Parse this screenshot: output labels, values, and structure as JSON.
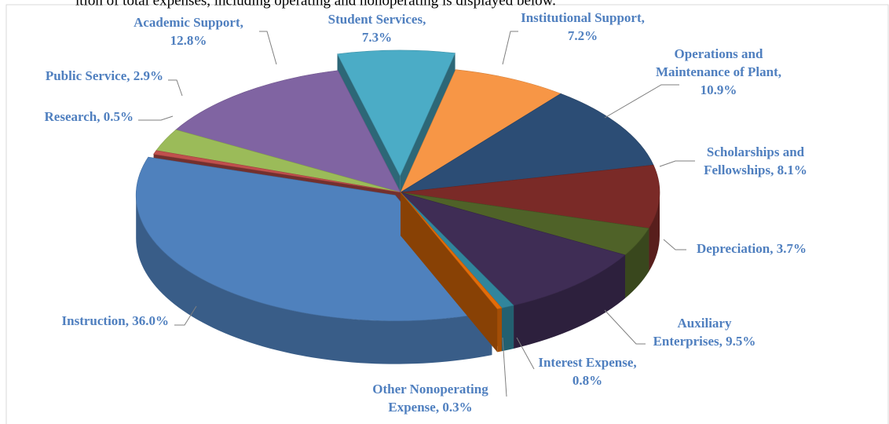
{
  "caption": "ition of total expenses, including operating and nonoperating is displayed below.",
  "chart_data": {
    "type": "pie3d",
    "values": [
      7.3,
      7.2,
      10.9,
      8.1,
      3.7,
      9.5,
      0.8,
      0.3,
      36.0,
      0.5,
      2.9,
      12.8
    ],
    "labels": [
      [
        "Student Services,",
        "7.3%"
      ],
      [
        "Institutional Support,",
        "7.2%"
      ],
      [
        "Operations and",
        "Maintenance of Plant,",
        "10.9%"
      ],
      [
        "Scholarships and",
        "Fellowships, 8.1%"
      ],
      [
        "Depreciation, 3.7%"
      ],
      [
        "Auxiliary",
        "Enterprises, 9.5%"
      ],
      [
        "Interest Expense,",
        "0.8%"
      ],
      [
        "Other Nonoperating",
        "Expense, 0.3%"
      ],
      [
        "Instruction, 36.0%"
      ],
      [
        "Research, 0.5%"
      ],
      [
        "Public Service, 2.9%"
      ],
      [
        "Academic Support,",
        "12.8%"
      ]
    ],
    "colors": [
      "#4bacc6",
      "#f79646",
      "#2c4d75",
      "#7a2a27",
      "#4f6228",
      "#3f2d55",
      "#31859c",
      "#e36c09",
      "#4f81bd",
      "#c0504d",
      "#9bbb59",
      "#8064a2"
    ]
  }
}
